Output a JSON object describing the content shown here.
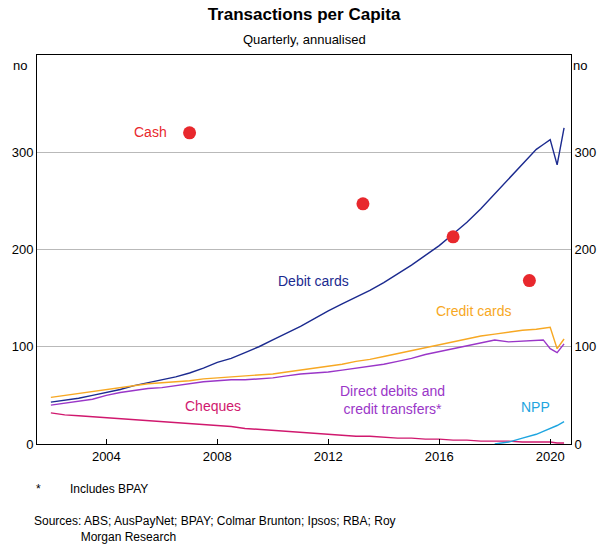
{
  "chart_data": {
    "type": "line",
    "title": "Transactions per Capita",
    "subtitle": "Quarterly, annualised",
    "y_label": "no",
    "x": [
      2002,
      2002.5,
      2003,
      2003.5,
      2004,
      2004.5,
      2005,
      2005.5,
      2006,
      2006.5,
      2007,
      2007.5,
      2008,
      2008.5,
      2009,
      2009.5,
      2010,
      2010.5,
      2011,
      2011.5,
      2012,
      2012.5,
      2013,
      2013.5,
      2014,
      2014.5,
      2015,
      2015.5,
      2016,
      2016.5,
      2017,
      2017.5,
      2018,
      2018.5,
      2019,
      2019.5,
      2019.75,
      2020,
      2020.25,
      2020.5
    ],
    "xlim": [
      2001.5,
      2020.75
    ],
    "xticks": [
      2004,
      2008,
      2012,
      2016,
      2020
    ],
    "ylim": [
      0,
      400
    ],
    "yticks": [
      0,
      100,
      200,
      300
    ],
    "grid": true,
    "series": [
      {
        "name": "Cash",
        "type": "scatter",
        "marker": "circle",
        "color": "#e8282d",
        "x": [
          2007,
          2013.25,
          2016.5,
          2019.25
        ],
        "values": [
          320,
          247,
          213,
          168
        ]
      },
      {
        "name": "Debit cards",
        "color": "#1b2a8f",
        "values": [
          43,
          45,
          47,
          50,
          53,
          56,
          60,
          63,
          66,
          69,
          73,
          78,
          84,
          88,
          94,
          100,
          107,
          114,
          121,
          129,
          137,
          144,
          151,
          158,
          166,
          175,
          184,
          194,
          204,
          216,
          228,
          242,
          257,
          272,
          288,
          303,
          308,
          313,
          287,
          325
        ]
      },
      {
        "name": "Credit cards",
        "color": "#f7a823",
        "values": [
          48,
          50,
          52,
          54,
          56,
          58,
          60,
          62,
          63,
          64,
          65,
          67,
          68,
          69,
          70,
          71,
          72,
          74,
          76,
          78,
          80,
          82,
          85,
          87,
          90,
          93,
          96,
          99,
          102,
          105,
          108,
          111,
          113,
          115,
          117,
          118,
          119,
          120,
          98,
          108
        ]
      },
      {
        "name": "Direct debits and credit transfers*",
        "color": "#9a36c8",
        "values": [
          40,
          42,
          44,
          46,
          50,
          53,
          55,
          57,
          58,
          60,
          62,
          64,
          65,
          66,
          66,
          67,
          68,
          70,
          72,
          73,
          74,
          76,
          78,
          80,
          82,
          85,
          88,
          92,
          95,
          98,
          101,
          104,
          107,
          105,
          106,
          107,
          107,
          98,
          94,
          103
        ]
      },
      {
        "name": "Cheques",
        "color": "#d0186e",
        "values": [
          32,
          30,
          29,
          28,
          27,
          26,
          25,
          24,
          23,
          22,
          21,
          20,
          19,
          18,
          16,
          15,
          14,
          13,
          12,
          11,
          10,
          9,
          8,
          8,
          7,
          6,
          6,
          5,
          5,
          4,
          4,
          3,
          3,
          3,
          2,
          2,
          2,
          2,
          1,
          1
        ]
      },
      {
        "name": "NPP",
        "color": "#1ea5e0",
        "values": [
          null,
          null,
          null,
          null,
          null,
          null,
          null,
          null,
          null,
          null,
          null,
          null,
          null,
          null,
          null,
          null,
          null,
          null,
          null,
          null,
          null,
          null,
          null,
          null,
          null,
          null,
          null,
          null,
          null,
          null,
          null,
          null,
          0,
          2,
          6,
          10,
          13,
          16,
          19,
          23
        ]
      }
    ],
    "footnote": {
      "marker": "*",
      "text": "Includes BPAY"
    },
    "sources": [
      "Sources: ABS; AusPayNet; BPAY; Colmar Brunton; Ipsos; RBA; Roy",
      "Morgan Research"
    ]
  }
}
